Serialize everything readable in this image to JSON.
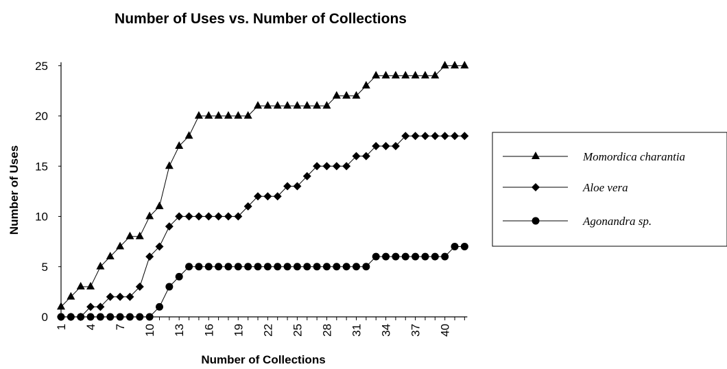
{
  "chart_data": {
    "type": "line",
    "title": "Number of Uses vs. Number of Collections",
    "xlabel": "Number of Collections",
    "ylabel": "Number of Uses",
    "x": [
      1,
      2,
      3,
      4,
      5,
      6,
      7,
      8,
      9,
      10,
      11,
      12,
      13,
      14,
      15,
      16,
      17,
      18,
      19,
      20,
      21,
      22,
      23,
      24,
      25,
      26,
      27,
      28,
      29,
      30,
      31,
      32,
      33,
      34,
      35,
      36,
      37,
      38,
      39,
      40,
      41,
      42
    ],
    "x_tick_labels": [
      "1",
      "4",
      "7",
      "10",
      "13",
      "16",
      "19",
      "22",
      "25",
      "28",
      "31",
      "34",
      "37",
      "40"
    ],
    "ylim": [
      0,
      25
    ],
    "y_ticks": [
      0,
      5,
      10,
      15,
      20,
      25
    ],
    "grid": false,
    "legend_position": "right",
    "series": [
      {
        "name": "Momordica charantia",
        "marker": "triangle",
        "color": "#000000",
        "values": [
          1,
          2,
          3,
          3,
          5,
          6,
          7,
          8,
          8,
          10,
          11,
          15,
          17,
          18,
          20,
          20,
          20,
          20,
          20,
          20,
          21,
          21,
          21,
          21,
          21,
          21,
          21,
          21,
          22,
          22,
          22,
          23,
          24,
          24,
          24,
          24,
          24,
          24,
          24,
          25,
          25,
          25
        ]
      },
      {
        "name": "Aloe vera",
        "marker": "diamond",
        "color": "#000000",
        "values": [
          0,
          0,
          0,
          1,
          1,
          2,
          2,
          2,
          3,
          6,
          7,
          9,
          10,
          10,
          10,
          10,
          10,
          10,
          10,
          11,
          12,
          12,
          12,
          13,
          13,
          14,
          15,
          15,
          15,
          15,
          16,
          16,
          17,
          17,
          17,
          18,
          18,
          18,
          18,
          18,
          18,
          18
        ]
      },
      {
        "name": "Agonandra sp.",
        "marker": "circle",
        "color": "#000000",
        "values": [
          0,
          0,
          0,
          0,
          0,
          0,
          0,
          0,
          0,
          0,
          1,
          3,
          4,
          5,
          5,
          5,
          5,
          5,
          5,
          5,
          5,
          5,
          5,
          5,
          5,
          5,
          5,
          5,
          5,
          5,
          5,
          5,
          6,
          6,
          6,
          6,
          6,
          6,
          6,
          6,
          7,
          7
        ]
      }
    ]
  }
}
